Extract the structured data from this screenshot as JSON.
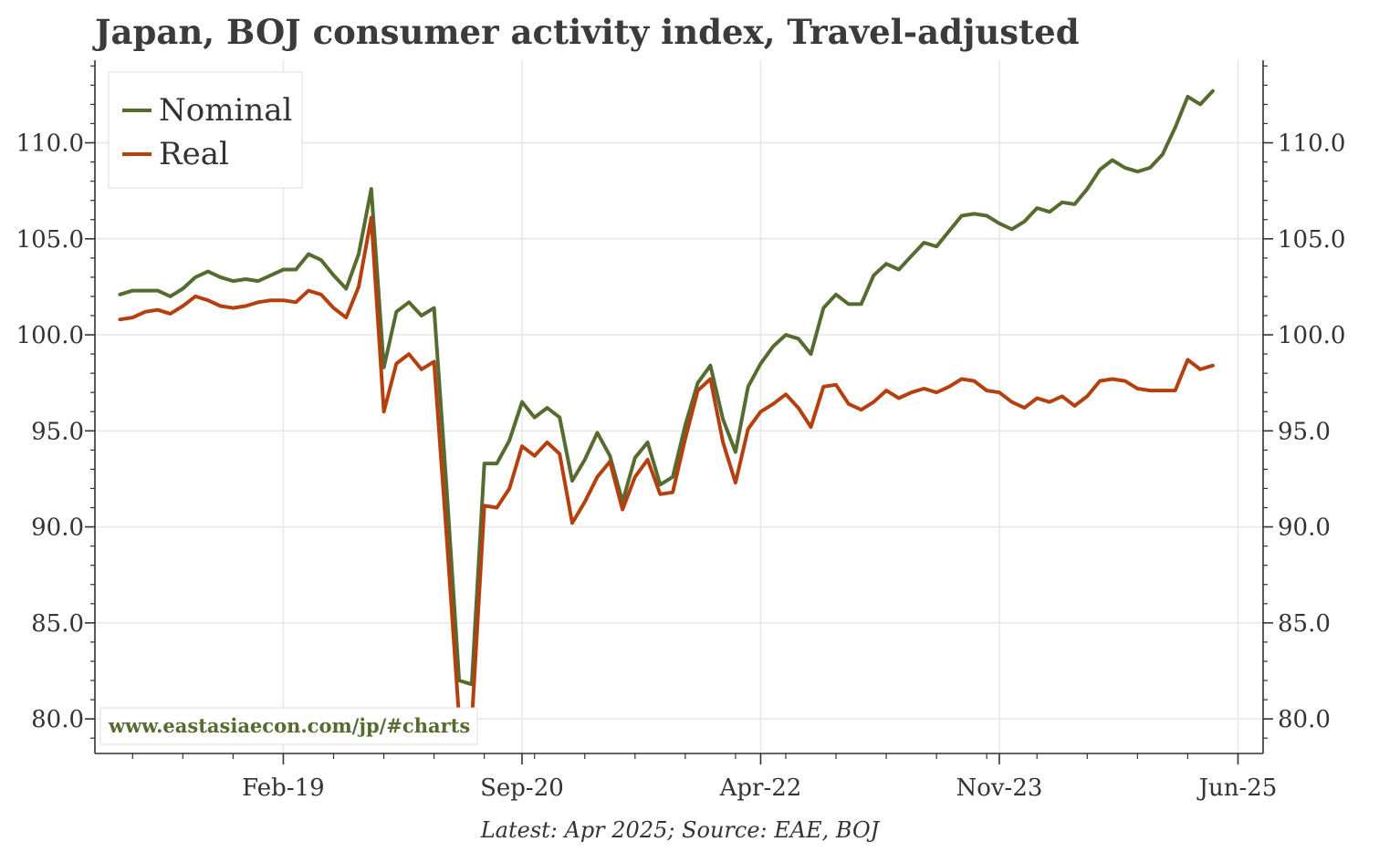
{
  "chart_data": {
    "type": "line",
    "title": "Japan, BOJ consumer activity index, Travel-adjusted",
    "source": "Latest: Apr 2025; Source: EAE, BOJ",
    "watermark": "www.eastasiaecon.com/jp/#charts",
    "x_tick_labels": [
      "Feb-19",
      "Sep-20",
      "Apr-22",
      "Nov-23",
      "Jun-25"
    ],
    "x_tick_indices": [
      13,
      32,
      51,
      70,
      89
    ],
    "xlim": [
      -2,
      91
    ],
    "y_ticks": [
      80,
      85,
      90,
      95,
      100,
      105,
      110
    ],
    "y_tick_labels": [
      "80.0",
      "85.0",
      "90.0",
      "95.0",
      "100.0",
      "105.0",
      "110.0"
    ],
    "ylim": [
      78.2,
      114.3
    ],
    "start_month": "Jan-18",
    "end_month": "Apr-25",
    "legend_position": "top-left",
    "series": [
      {
        "name": "Nominal",
        "color": "#556b2f",
        "values": [
          102.1,
          102.3,
          102.3,
          102.3,
          102.0,
          102.4,
          103.0,
          103.3,
          103.0,
          102.8,
          102.9,
          102.8,
          103.1,
          103.4,
          103.4,
          104.2,
          103.9,
          103.1,
          102.4,
          104.2,
          107.6,
          98.3,
          101.2,
          101.7,
          101.0,
          101.4,
          92.0,
          82.0,
          81.8,
          93.3,
          93.3,
          94.5,
          96.5,
          95.7,
          96.2,
          95.7,
          92.4,
          93.5,
          94.9,
          93.7,
          91.3,
          93.6,
          94.4,
          92.2,
          92.6,
          95.3,
          97.5,
          98.4,
          95.6,
          93.9,
          97.3,
          98.5,
          99.4,
          100.0,
          99.8,
          99.0,
          101.4,
          102.1,
          101.6,
          101.6,
          103.1,
          103.7,
          103.4,
          104.1,
          104.8,
          104.6,
          105.4,
          106.2,
          106.3,
          106.2,
          105.8,
          105.5,
          105.9,
          106.6,
          106.4,
          106.9,
          106.8,
          107.6,
          108.6,
          109.1,
          108.7,
          108.5,
          108.7,
          109.4,
          110.8,
          112.4,
          112.0,
          112.7
        ]
      },
      {
        "name": "Real",
        "color": "#b5400f",
        "values": [
          100.8,
          100.9,
          101.2,
          101.3,
          101.1,
          101.5,
          102.0,
          101.8,
          101.5,
          101.4,
          101.5,
          101.7,
          101.8,
          101.8,
          101.7,
          102.3,
          102.1,
          101.4,
          100.9,
          102.5,
          106.1,
          96.0,
          98.5,
          99.0,
          98.2,
          98.6,
          89.5,
          80.0,
          79.8,
          91.1,
          91.0,
          92.0,
          94.2,
          93.7,
          94.4,
          93.8,
          90.2,
          91.3,
          92.6,
          93.4,
          90.9,
          92.6,
          93.5,
          91.7,
          91.8,
          94.6,
          97.1,
          97.7,
          94.4,
          92.3,
          95.1,
          96.0,
          96.4,
          96.9,
          96.2,
          95.2,
          97.3,
          97.4,
          96.4,
          96.1,
          96.5,
          97.1,
          96.7,
          97.0,
          97.2,
          97.0,
          97.3,
          97.7,
          97.6,
          97.1,
          97.0,
          96.5,
          96.2,
          96.7,
          96.5,
          96.8,
          96.3,
          96.8,
          97.6,
          97.7,
          97.6,
          97.2,
          97.1,
          97.1,
          97.1,
          98.7,
          98.2,
          98.4
        ]
      }
    ]
  }
}
